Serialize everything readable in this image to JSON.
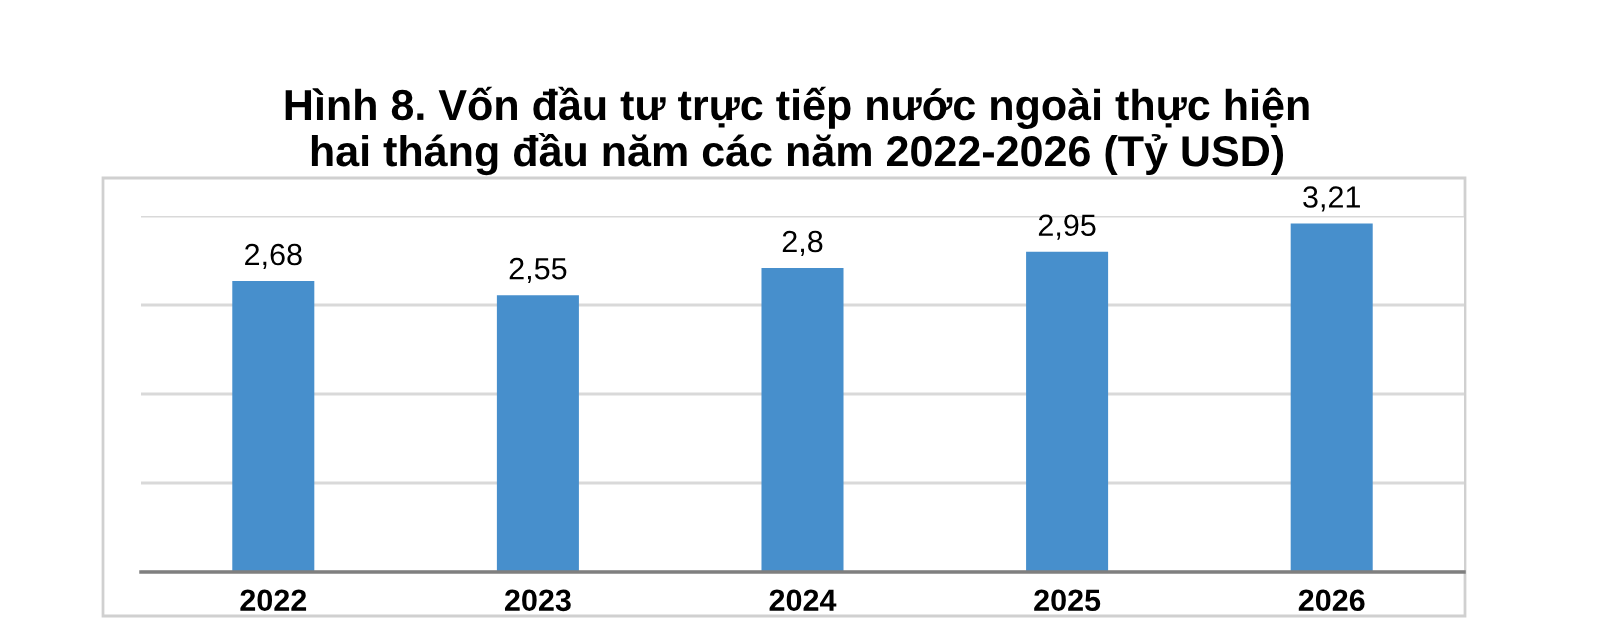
{
  "chart_data": {
    "type": "bar",
    "title": "Hình 8. Vốn đầu tư trực tiếp nước ngoài thực hiện hai tháng đầu năm các năm 2022-2026 (Tỷ USD)",
    "categories": [
      "2022",
      "2023",
      "2024",
      "2025",
      "2026"
    ],
    "values": [
      2.68,
      2.55,
      2.8,
      2.95,
      3.21
    ],
    "value_labels": [
      "2,68",
      "2,55",
      "2,8",
      "2,95",
      "3,21"
    ],
    "color": "#478fcc",
    "ylim": [
      0,
      3.28
    ],
    "yticks": [
      {
        "value": 0,
        "label": null
      },
      {
        "value": 0.82,
        "label": null
      },
      {
        "value": 1.64,
        "label": null
      },
      {
        "value": 2.46,
        "label": null
      },
      {
        "value": 3.28,
        "label": null
      }
    ],
    "grid": "y",
    "tick_labels": "x"
  }
}
